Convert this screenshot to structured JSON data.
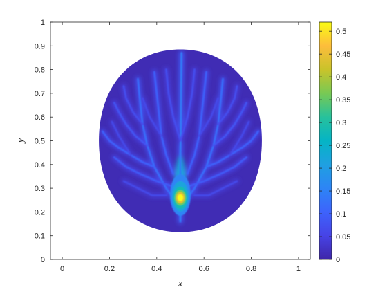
{
  "chart_data": {
    "type": "heatmap",
    "title": "",
    "xlabel": "x",
    "ylabel": "y",
    "xlim": [
      -0.05,
      1.05
    ],
    "ylim": [
      0,
      1
    ],
    "xticks": [
      0,
      0.2,
      0.4,
      0.6,
      0.8,
      1
    ],
    "xtick_labels": [
      "0",
      "0.2",
      "0.4",
      "0.6",
      "0.8",
      "1"
    ],
    "yticks": [
      0,
      0.1,
      0.2,
      0.3,
      0.4,
      0.5,
      0.6,
      0.7,
      0.8,
      0.9,
      1
    ],
    "ytick_labels": [
      "0",
      "0.1",
      "0.2",
      "0.3",
      "0.4",
      "0.5",
      "0.6",
      "0.7",
      "0.8",
      "0.9",
      "1"
    ],
    "colorbar": {
      "colormap": "parula",
      "clim": [
        0,
        0.52
      ],
      "ticks": [
        0,
        0.05,
        0.1,
        0.15,
        0.2,
        0.25,
        0.3,
        0.35,
        0.4,
        0.45,
        0.5
      ],
      "tick_labels": [
        "0",
        "0.05",
        "0.1",
        "0.15",
        "0.2",
        "0.25",
        "0.3",
        "0.35",
        "0.4",
        "0.45",
        "0.5"
      ]
    },
    "domain": {
      "shape": "lens",
      "bottom_tip": [
        0.5,
        0.115
      ],
      "top_tip": [
        0.5,
        0.885
      ],
      "left_extreme": [
        0.155,
        0.5
      ],
      "right_extreme": [
        0.845,
        0.5
      ],
      "background_value": 0.01
    },
    "hot_spot": {
      "x": 0.5,
      "y": 0.26,
      "value": 0.52
    },
    "branches": [
      {
        "points": [
          [
            0.5,
            0.16
          ],
          [
            0.5,
            0.26
          ],
          [
            0.5,
            0.35
          ],
          [
            0.5,
            0.45
          ],
          [
            0.502,
            0.55
          ],
          [
            0.503,
            0.7
          ],
          [
            0.505,
            0.87
          ]
        ],
        "value": 0.14
      },
      {
        "points": [
          [
            0.5,
            0.22
          ],
          [
            0.44,
            0.3
          ],
          [
            0.39,
            0.39
          ],
          [
            0.36,
            0.48
          ],
          [
            0.34,
            0.57
          ],
          [
            0.33,
            0.66
          ],
          [
            0.32,
            0.76
          ]
        ],
        "value": 0.12
      },
      {
        "points": [
          [
            0.5,
            0.22
          ],
          [
            0.56,
            0.3
          ],
          [
            0.61,
            0.39
          ],
          [
            0.64,
            0.48
          ],
          [
            0.66,
            0.57
          ],
          [
            0.67,
            0.66
          ],
          [
            0.68,
            0.76
          ]
        ],
        "value": 0.12
      },
      {
        "points": [
          [
            0.39,
            0.39
          ],
          [
            0.34,
            0.41
          ],
          [
            0.29,
            0.44
          ],
          [
            0.24,
            0.47
          ],
          [
            0.2,
            0.5
          ],
          [
            0.17,
            0.54
          ]
        ],
        "value": 0.1
      },
      {
        "points": [
          [
            0.61,
            0.39
          ],
          [
            0.66,
            0.41
          ],
          [
            0.71,
            0.44
          ],
          [
            0.76,
            0.47
          ],
          [
            0.8,
            0.5
          ],
          [
            0.83,
            0.54
          ]
        ],
        "value": 0.1
      },
      {
        "points": [
          [
            0.47,
            0.36
          ],
          [
            0.44,
            0.44
          ],
          [
            0.42,
            0.52
          ],
          [
            0.41,
            0.61
          ],
          [
            0.4,
            0.7
          ],
          [
            0.39,
            0.79
          ]
        ],
        "value": 0.1
      },
      {
        "points": [
          [
            0.53,
            0.36
          ],
          [
            0.56,
            0.44
          ],
          [
            0.58,
            0.52
          ],
          [
            0.59,
            0.61
          ],
          [
            0.6,
            0.7
          ],
          [
            0.61,
            0.79
          ]
        ],
        "value": 0.1
      },
      {
        "points": [
          [
            0.46,
            0.31
          ],
          [
            0.4,
            0.33
          ],
          [
            0.33,
            0.36
          ],
          [
            0.27,
            0.39
          ],
          [
            0.22,
            0.43
          ]
        ],
        "value": 0.09
      },
      {
        "points": [
          [
            0.54,
            0.31
          ],
          [
            0.6,
            0.33
          ],
          [
            0.67,
            0.36
          ],
          [
            0.73,
            0.39
          ],
          [
            0.78,
            0.43
          ]
        ],
        "value": 0.09
      },
      {
        "points": [
          [
            0.36,
            0.48
          ],
          [
            0.31,
            0.52
          ],
          [
            0.27,
            0.57
          ],
          [
            0.24,
            0.62
          ],
          [
            0.22,
            0.66
          ]
        ],
        "value": 0.08
      },
      {
        "points": [
          [
            0.64,
            0.48
          ],
          [
            0.69,
            0.52
          ],
          [
            0.73,
            0.57
          ],
          [
            0.76,
            0.62
          ],
          [
            0.78,
            0.66
          ]
        ],
        "value": 0.08
      },
      {
        "points": [
          [
            0.34,
            0.57
          ],
          [
            0.3,
            0.62
          ],
          [
            0.27,
            0.68
          ],
          [
            0.26,
            0.73
          ]
        ],
        "value": 0.07
      },
      {
        "points": [
          [
            0.66,
            0.57
          ],
          [
            0.7,
            0.62
          ],
          [
            0.73,
            0.68
          ],
          [
            0.74,
            0.73
          ]
        ],
        "value": 0.07
      },
      {
        "points": [
          [
            0.42,
            0.52
          ],
          [
            0.37,
            0.6
          ],
          [
            0.34,
            0.68
          ]
        ],
        "value": 0.06
      },
      {
        "points": [
          [
            0.58,
            0.52
          ],
          [
            0.63,
            0.6
          ],
          [
            0.66,
            0.68
          ]
        ],
        "value": 0.06
      },
      {
        "points": [
          [
            0.5,
            0.5
          ],
          [
            0.47,
            0.6
          ],
          [
            0.45,
            0.7
          ],
          [
            0.44,
            0.8
          ]
        ],
        "value": 0.07
      },
      {
        "points": [
          [
            0.5,
            0.5
          ],
          [
            0.53,
            0.6
          ],
          [
            0.55,
            0.7
          ],
          [
            0.56,
            0.8
          ]
        ],
        "value": 0.07
      },
      {
        "points": [
          [
            0.29,
            0.44
          ],
          [
            0.24,
            0.52
          ],
          [
            0.21,
            0.58
          ]
        ],
        "value": 0.06
      },
      {
        "points": [
          [
            0.71,
            0.44
          ],
          [
            0.76,
            0.52
          ],
          [
            0.79,
            0.58
          ]
        ],
        "value": 0.06
      },
      {
        "points": [
          [
            0.44,
            0.27
          ],
          [
            0.38,
            0.27
          ],
          [
            0.32,
            0.3
          ],
          [
            0.26,
            0.33
          ]
        ],
        "value": 0.06
      },
      {
        "points": [
          [
            0.56,
            0.27
          ],
          [
            0.62,
            0.27
          ],
          [
            0.68,
            0.3
          ],
          [
            0.74,
            0.33
          ]
        ],
        "value": 0.06
      }
    ]
  }
}
